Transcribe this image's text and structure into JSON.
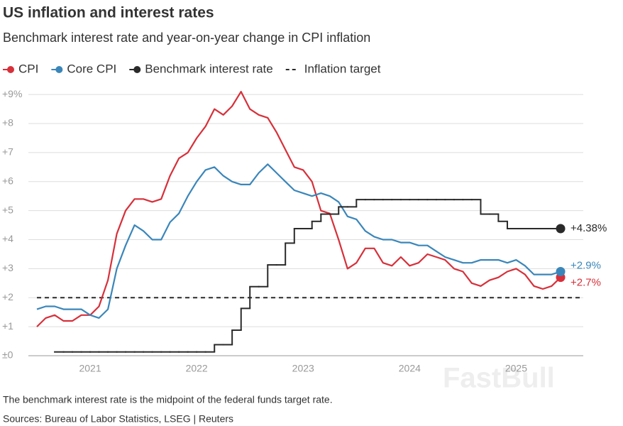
{
  "chart_data": {
    "type": "line",
    "title": "US inflation and interest rates",
    "subtitle": "Benchmark interest rate and year-on-year change in CPI inflation",
    "note": "The benchmark interest rate is the midpoint of the federal funds target rate.",
    "source": "Sources: Bureau of Labor Statistics, LSEG | Reuters",
    "watermark": "FastBull",
    "x": [
      2020.5,
      2020.583,
      2020.667,
      2020.75,
      2020.833,
      2020.917,
      2021,
      2021.083,
      2021.167,
      2021.25,
      2021.333,
      2021.417,
      2021.5,
      2021.583,
      2021.667,
      2021.75,
      2021.833,
      2021.917,
      2022,
      2022.083,
      2022.167,
      2022.25,
      2022.333,
      2022.417,
      2022.5,
      2022.583,
      2022.667,
      2022.75,
      2022.833,
      2022.917,
      2023,
      2023.083,
      2023.167,
      2023.25,
      2023.333,
      2023.417,
      2023.5,
      2023.583,
      2023.667,
      2023.75,
      2023.833,
      2023.917,
      2024,
      2024.083,
      2024.167,
      2024.25,
      2024.333,
      2024.417,
      2024.5,
      2024.583,
      2024.667,
      2024.75,
      2024.833,
      2024.917,
      2025,
      2025.083,
      2025.167,
      2025.25,
      2025.333,
      2025.417
    ],
    "series": [
      {
        "name": "CPI",
        "color": "#d7303a",
        "step": false,
        "values": [
          1.0,
          1.3,
          1.4,
          1.2,
          1.2,
          1.4,
          1.4,
          1.7,
          2.6,
          4.2,
          5.0,
          5.4,
          5.4,
          5.3,
          5.4,
          6.2,
          6.8,
          7.0,
          7.5,
          7.9,
          8.5,
          8.3,
          8.6,
          9.1,
          8.5,
          8.3,
          8.2,
          7.7,
          7.1,
          6.5,
          6.4,
          6.0,
          5.0,
          4.9,
          4.0,
          3.0,
          3.2,
          3.7,
          3.7,
          3.2,
          3.1,
          3.4,
          3.1,
          3.2,
          3.5,
          3.4,
          3.3,
          3.0,
          2.9,
          2.5,
          2.4,
          2.6,
          2.7,
          2.9,
          3.0,
          2.8,
          2.4,
          2.3,
          2.4,
          2.7
        ],
        "value_labels": [
          null,
          null,
          null,
          null,
          null,
          null,
          null,
          null,
          null,
          null,
          null,
          null,
          null,
          null,
          null,
          null,
          null,
          null,
          null,
          null,
          null,
          null,
          null,
          null,
          null,
          null,
          null,
          null,
          null,
          null,
          null,
          null,
          null,
          null,
          null,
          null,
          null,
          null,
          null,
          null,
          null,
          null,
          null,
          null,
          null,
          null,
          null,
          null,
          null,
          null,
          null,
          null,
          null,
          null,
          null,
          null,
          null,
          null,
          null,
          "+2.7%"
        ]
      },
      {
        "name": "Core CPI",
        "color": "#3a86ba",
        "step": false,
        "values": [
          1.6,
          1.7,
          1.7,
          1.6,
          1.6,
          1.6,
          1.4,
          1.3,
          1.6,
          3.0,
          3.8,
          4.5,
          4.3,
          4.0,
          4.0,
          4.6,
          4.9,
          5.5,
          6.0,
          6.4,
          6.5,
          6.2,
          6.0,
          5.9,
          5.9,
          6.3,
          6.6,
          6.3,
          6.0,
          5.7,
          5.6,
          5.5,
          5.6,
          5.5,
          5.3,
          4.8,
          4.7,
          4.3,
          4.1,
          4.0,
          4.0,
          3.9,
          3.9,
          3.8,
          3.8,
          3.6,
          3.4,
          3.3,
          3.2,
          3.2,
          3.3,
          3.3,
          3.3,
          3.2,
          3.3,
          3.1,
          2.8,
          2.8,
          2.8,
          2.9
        ],
        "value_labels": [
          null,
          null,
          null,
          null,
          null,
          null,
          null,
          null,
          null,
          null,
          null,
          null,
          null,
          null,
          null,
          null,
          null,
          null,
          null,
          null,
          null,
          null,
          null,
          null,
          null,
          null,
          null,
          null,
          null,
          null,
          null,
          null,
          null,
          null,
          null,
          null,
          null,
          null,
          null,
          null,
          null,
          null,
          null,
          null,
          null,
          null,
          null,
          null,
          null,
          null,
          null,
          null,
          null,
          null,
          null,
          null,
          null,
          null,
          null,
          "+2.9%"
        ]
      },
      {
        "name": "Benchmark interest rate",
        "color": "#2a2a2a",
        "step": true,
        "values": [
          null,
          null,
          0.13,
          0.13,
          0.13,
          0.13,
          0.13,
          0.13,
          0.13,
          0.13,
          0.13,
          0.13,
          0.13,
          0.13,
          0.13,
          0.13,
          0.13,
          0.13,
          0.13,
          0.13,
          0.38,
          0.38,
          0.88,
          1.63,
          2.38,
          2.38,
          3.13,
          3.13,
          3.88,
          4.38,
          4.38,
          4.63,
          4.88,
          4.88,
          5.13,
          5.13,
          5.38,
          5.38,
          5.38,
          5.38,
          5.38,
          5.38,
          5.38,
          5.38,
          5.38,
          5.38,
          5.38,
          5.38,
          5.38,
          5.38,
          4.88,
          4.88,
          4.63,
          4.38,
          4.38,
          4.38,
          4.38,
          4.38,
          4.38,
          4.38
        ],
        "value_labels": [
          null,
          null,
          null,
          null,
          null,
          null,
          null,
          null,
          null,
          null,
          null,
          null,
          null,
          null,
          null,
          null,
          null,
          null,
          null,
          null,
          null,
          null,
          null,
          null,
          null,
          null,
          null,
          null,
          null,
          null,
          null,
          null,
          null,
          null,
          null,
          null,
          null,
          null,
          null,
          null,
          null,
          null,
          null,
          null,
          null,
          null,
          null,
          null,
          null,
          null,
          null,
          null,
          null,
          null,
          null,
          null,
          null,
          null,
          null,
          "+4.38%"
        ]
      }
    ],
    "target": {
      "name": "Inflation target",
      "value": 2,
      "color": "#2a2a2a"
    },
    "xlim": [
      2020.42,
      2025.63
    ],
    "xticks": [
      2021,
      2022,
      2023,
      2024,
      2025
    ],
    "ylim": [
      0,
      9.2
    ],
    "yticks": [
      {
        "value": 0,
        "label": "±0"
      },
      {
        "value": 1,
        "label": "+1"
      },
      {
        "value": 2,
        "label": "+2"
      },
      {
        "value": 3,
        "label": "+3"
      },
      {
        "value": 4,
        "label": "+4"
      },
      {
        "value": 5,
        "label": "+5"
      },
      {
        "value": 6,
        "label": "+6"
      },
      {
        "value": 7,
        "label": "+7"
      },
      {
        "value": 8,
        "label": "+8"
      },
      {
        "value": 9,
        "label": "+9%"
      }
    ],
    "grid": true
  }
}
